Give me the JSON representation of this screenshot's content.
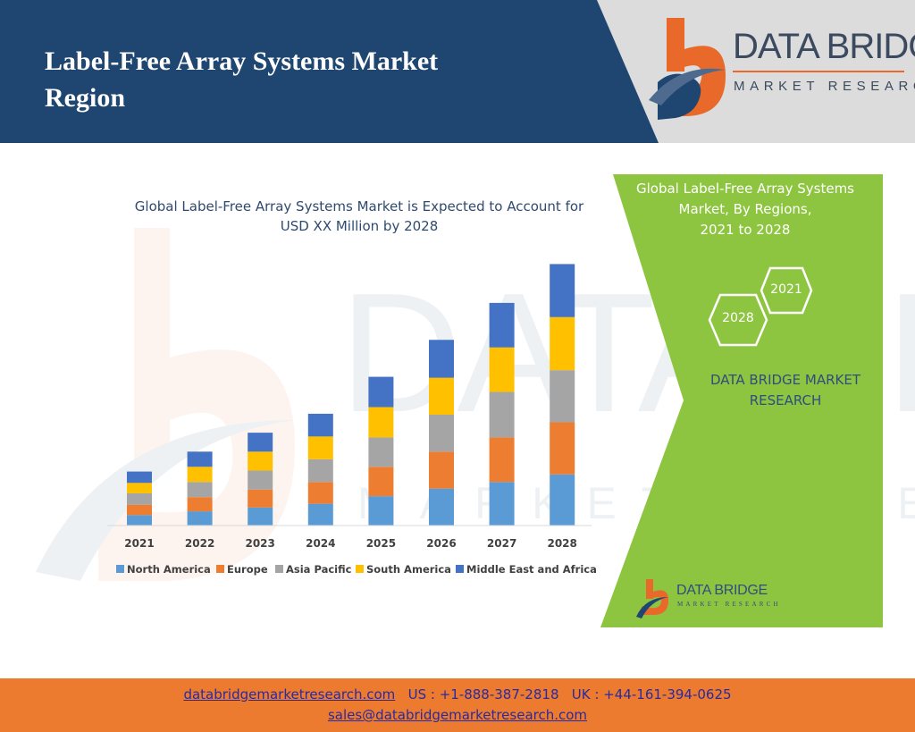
{
  "header": {
    "title_line1": "Label-Free Array Systems Market",
    "title_line2": "Region",
    "brand_name": "DATA BRIDGE",
    "brand_tagline": "MARKET RESEARCH"
  },
  "side_panel": {
    "title_line1": "Global Label-Free Array Systems",
    "title_line2": "Market, By Regions,",
    "title_line3": "2021 to 2028",
    "hex_top": "2021",
    "hex_bottom": "2028",
    "brand_line1": "DATA BRIDGE MARKET",
    "brand_line2": "RESEARCH",
    "small_brand_name": "DATA BRIDGE",
    "small_brand_tagline": "MARKET RESEARCH"
  },
  "footer": {
    "website": "databridgemarketresearch.com",
    "us_phone": "US : +1-888-387-2818",
    "uk_phone": "UK : +44-161-394-0625",
    "email": "sales@databridgemarketresearch.com"
  },
  "colors": {
    "header_bg": "#1f4670",
    "panel_green": "#8dc540",
    "footer_orange": "#ec7a2f",
    "accent_orange": "#e8692a"
  },
  "chart_data": {
    "type": "bar",
    "stacked": true,
    "title_line1": "Global Label-Free Array Systems Market is Expected to Account for",
    "title_line2": "USD XX Million by 2028",
    "categories": [
      "2021",
      "2022",
      "2023",
      "2024",
      "2025",
      "2026",
      "2027",
      "2028"
    ],
    "series": [
      {
        "name": "North America",
        "color": "#5b9bd5",
        "values": [
          11,
          15,
          19,
          23,
          31,
          39,
          46,
          54
        ]
      },
      {
        "name": "Europe",
        "color": "#ed7d31",
        "values": [
          11,
          15,
          19,
          23,
          31,
          39,
          47,
          55
        ]
      },
      {
        "name": "Asia Pacific",
        "color": "#a5a5a5",
        "values": [
          12,
          16,
          20,
          24,
          31,
          39,
          48,
          55
        ]
      },
      {
        "name": "South America",
        "color": "#ffc000",
        "values": [
          11,
          16,
          20,
          24,
          32,
          39,
          47,
          56
        ]
      },
      {
        "name": "Middle East and Africa",
        "color": "#4472c4",
        "values": [
          12,
          16,
          20,
          24,
          32,
          40,
          47,
          56
        ]
      }
    ],
    "ylim": [
      0,
      300
    ],
    "grid": false,
    "legend": "bottom"
  }
}
